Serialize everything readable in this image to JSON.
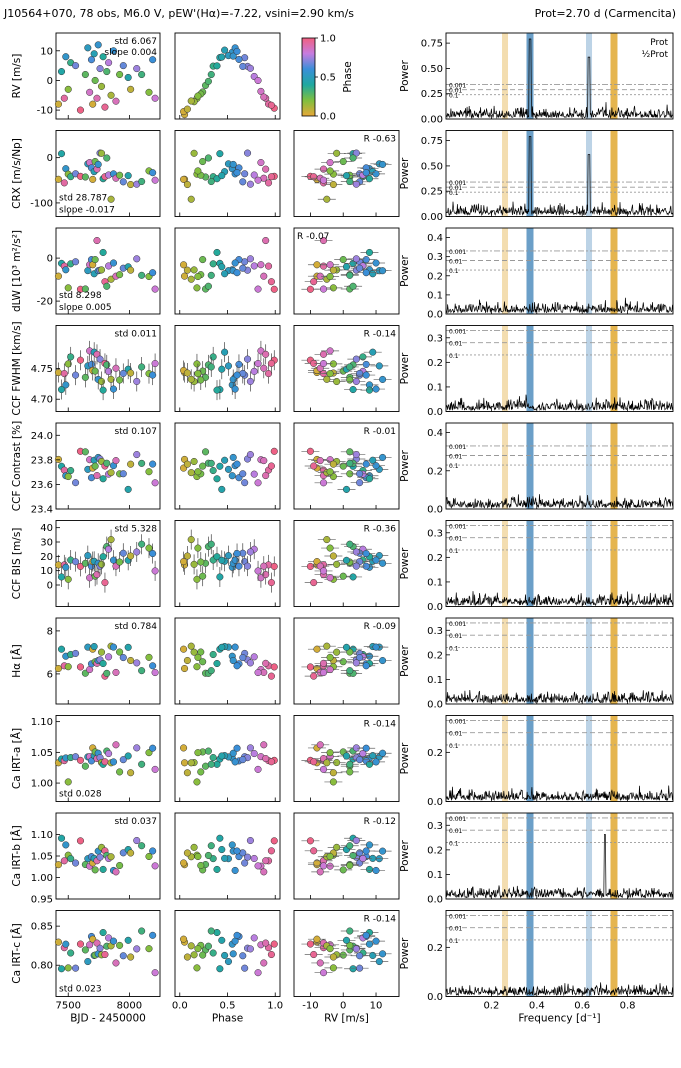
{
  "figure": {
    "title": "J10564+070, 78 obs, M6.0 V, pEW'(Hα)=-7.22, vsini=2.90 km/s",
    "prot_label": "Prot=2.70 d (Carmencita)",
    "colorbar": {
      "label": "Phase",
      "ticks": [
        "1.0",
        "0.5",
        "0.0"
      ],
      "colors": [
        "#e8a838",
        "#7fbf3f",
        "#1fa8a0",
        "#3a8fd8",
        "#c77ce0",
        "#f06080"
      ]
    },
    "periodogram_legend": [
      "Prot",
      "½Prot"
    ],
    "fap_labels": [
      "0.001",
      "0.01",
      "0.1"
    ],
    "colors": {
      "prot_line": "#3a7fb5",
      "half_prot_line": "#e0a830",
      "band_light_blue": "#bcd3e6",
      "band_light_gold": "#f3ddb0"
    }
  },
  "chart_data": {
    "type": "scatter",
    "layout": "10 rows x 4 columns (time series, phase-folded, vs RV, periodogram)",
    "columns": [
      {
        "xlabel": "BJD - 2450000",
        "xlim": [
          7400,
          8250
        ],
        "ticks": [
          "7500",
          "8000"
        ]
      },
      {
        "xlabel": "Phase",
        "xlim": [
          -0.05,
          1.05
        ],
        "ticks": [
          "0.0",
          "0.5",
          "1.0"
        ]
      },
      {
        "xlabel": "RV [m/s]",
        "xlim": [
          -15,
          17
        ],
        "ticks": [
          "-10",
          "0",
          "10"
        ]
      },
      {
        "xlabel": "Frequency [d⁻¹]",
        "xlim": [
          0,
          1
        ],
        "ticks": [
          "0.2",
          "0.4",
          "0.6",
          "0.8"
        ]
      }
    ],
    "rows": [
      {
        "ylabel": "RV [m/s]",
        "ylim": [
          -13,
          16
        ],
        "ticks": [
          "10",
          "0",
          "-10"
        ],
        "std": "std 6.067",
        "slope": "slope 0.004",
        "corr": "",
        "power_ylim": [
          0,
          0.85
        ],
        "power_ticks": [
          "0.75",
          "0.50",
          "0.25",
          "0.00"
        ],
        "fap": [
          0.24,
          0.29,
          0.34
        ]
      },
      {
        "ylabel": "CRX [m/s/Np]",
        "ylim": [
          -130,
          60
        ],
        "ticks": [
          "0",
          "-100"
        ],
        "std": "std 28.787",
        "slope": "slope -0.017",
        "corr": "R -0.63",
        "power_ylim": [
          0,
          0.85
        ],
        "power_ticks": [
          "0.75",
          "0.50",
          "0.25",
          "0.00"
        ],
        "fap": [
          0.24,
          0.29,
          0.34
        ]
      },
      {
        "ylabel": "dLW [10³ m²/s²]",
        "ylim": [
          -26,
          14
        ],
        "ticks": [
          "0",
          "-20"
        ],
        "std": "std 8.298",
        "slope": "slope 0.005",
        "corr": "R -0.07",
        "power_ylim": [
          0,
          0.45
        ],
        "power_ticks": [
          "0.4",
          "0.3",
          "0.2",
          "0.1",
          "0.0"
        ],
        "fap": [
          0.23,
          0.28,
          0.33
        ]
      },
      {
        "ylabel": "CCF FWHM [km/s]",
        "ylim": [
          4.68,
          4.82
        ],
        "ticks": [
          "4.75",
          "4.70"
        ],
        "std": "std 0.011",
        "slope": "",
        "corr": "R -0.14",
        "power_ylim": [
          0,
          0.35
        ],
        "power_ticks": [
          "0.3",
          "0.2",
          "0.1",
          "0.0"
        ],
        "fap": [
          0.23,
          0.28,
          0.33
        ]
      },
      {
        "ylabel": "CCF Contrast [%]",
        "ylim": [
          23.4,
          24.1
        ],
        "ticks": [
          "24.0",
          "23.8",
          "23.6",
          "23.4"
        ],
        "std": "std 0.107",
        "slope": "",
        "corr": "R -0.01",
        "power_ylim": [
          0,
          0.45
        ],
        "power_ticks": [
          "0.4",
          "0.2",
          "0.0"
        ],
        "fap": [
          0.23,
          0.28,
          0.33
        ]
      },
      {
        "ylabel": "CCF BIS [m/s]",
        "ylim": [
          -15,
          45
        ],
        "ticks": [
          "40",
          "30",
          "20",
          "10",
          "0"
        ],
        "std": "std 5.328",
        "slope": "",
        "corr": "R -0.36",
        "power_ylim": [
          0,
          0.35
        ],
        "power_ticks": [
          "0.3",
          "0.2",
          "0.1",
          "0.0"
        ],
        "fap": [
          0.23,
          0.28,
          0.33
        ]
      },
      {
        "ylabel": "Hα [Å]",
        "ylim": [
          4.6,
          8.6
        ],
        "ticks": [
          "8",
          "6"
        ],
        "std": "std 0.784",
        "slope": "",
        "corr": "R -0.09",
        "power_ylim": [
          0,
          0.35
        ],
        "power_ticks": [
          "0.3",
          "0.2",
          "0.1",
          "0.0"
        ],
        "fap": [
          0.23,
          0.28,
          0.33
        ]
      },
      {
        "ylabel": "Ca IRT-a [Å]",
        "ylim": [
          0.97,
          1.11
        ],
        "ticks": [
          "1.10",
          "1.05",
          "1.00"
        ],
        "std": "std 0.028",
        "slope": "",
        "corr": "R -0.14",
        "power_ylim": [
          0,
          0.35
        ],
        "power_ticks": [
          "0.2",
          "0.0"
        ],
        "fap": [
          0.23,
          0.28,
          0.33
        ]
      },
      {
        "ylabel": "Ca IRT-b [Å]",
        "ylim": [
          0.95,
          1.15
        ],
        "ticks": [
          "1.10",
          "1.05",
          "1.00",
          "0.95"
        ],
        "std": "std 0.037",
        "slope": "",
        "corr": "R -0.12",
        "power_ylim": [
          0,
          0.35
        ],
        "power_ticks": [
          "0.3",
          "0.2",
          "0.1",
          "0.0"
        ],
        "fap": [
          0.23,
          0.28,
          0.33
        ]
      },
      {
        "ylabel": "Ca IRT-c [Å]",
        "ylim": [
          0.76,
          0.87
        ],
        "ticks": [
          "0.85",
          "0.80"
        ],
        "std": "std 0.023",
        "slope": "",
        "corr": "R -0.14",
        "power_ylim": [
          0,
          0.35
        ],
        "power_ticks": [
          "0.2",
          "0.0"
        ],
        "fap": [
          0.23,
          0.28,
          0.33
        ]
      }
    ],
    "period_lines": {
      "prot_freq": 0.37,
      "alias_freq": 0.63,
      "half_prot_freq": 0.74,
      "alias_half_freq": 0.26
    },
    "rv_series": {
      "bjd": [
        7420,
        7445,
        7468,
        7480,
        7500,
        7520,
        7560,
        7600,
        7640,
        7660,
        7675,
        7690,
        7700,
        7712,
        7720,
        7735,
        7745,
        7760,
        7772,
        7785,
        7800,
        7815,
        7830,
        7850,
        7870,
        7890,
        7920,
        7950,
        7990,
        8010,
        8060,
        8100,
        8160,
        8190,
        8210
      ],
      "rv": [
        -8,
        3,
        -6,
        8,
        -3,
        6,
        5,
        -10,
        2,
        11,
        -4,
        7,
        -8,
        9,
        0,
        -6,
        12,
        4,
        -2,
        8,
        -9,
        3,
        6,
        -5,
        10,
        -7,
        2,
        5,
        1,
        -3,
        4,
        2,
        -4,
        7,
        -6
      ],
      "phase": [
        0.05,
        0.42,
        0.93,
        0.55,
        0.18,
        0.35,
        0.68,
        0.99,
        0.27,
        0.51,
        0.85,
        0.62,
        0.04,
        0.47,
        0.24,
        0.9,
        0.56,
        0.71,
        0.15,
        0.39,
        0.96,
        0.3,
        0.78,
        0.12,
        0.58,
        0.88,
        0.22,
        0.66,
        0.44,
        0.08,
        0.74,
        0.33,
        0.19,
        0.6,
        0.82
      ]
    }
  }
}
